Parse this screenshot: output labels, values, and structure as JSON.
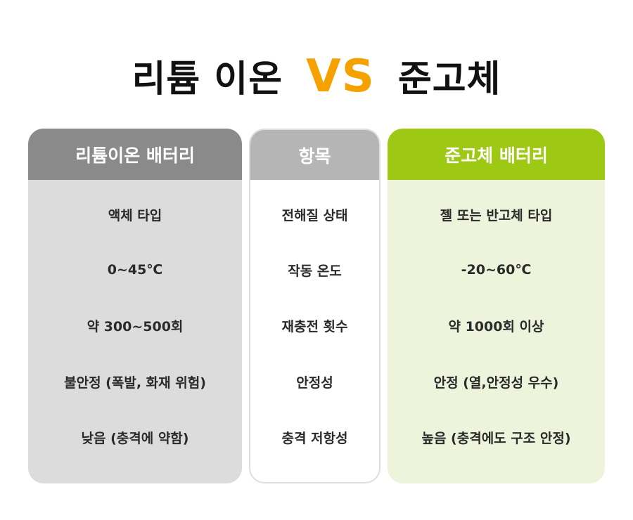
{
  "title": {
    "left": "리튬 이온",
    "vs": "VS",
    "right": "준고체",
    "vs_color": "#f5a100"
  },
  "columns": [
    {
      "header": "리튬이온 배터리",
      "header_color": "#8a8a8a",
      "body_color": "#dcdcdc",
      "rows": [
        "액체 타입",
        "0~45℃",
        "약 300~500회",
        "불안정 (폭발, 화재 위험)",
        "낮음 (충격에 약함)"
      ]
    },
    {
      "header": "항목",
      "header_color": "#b5b5b5",
      "body_color": "#ffffff",
      "rows": [
        "전해질 상태",
        "작동 온도",
        "재충전 횟수",
        "안정성",
        "충격 저항성"
      ]
    },
    {
      "header": "준고체 배터리",
      "header_color": "#9dc814",
      "body_color": "#eef4dc",
      "rows": [
        "젤 또는 반고체 타입",
        "-20~60℃",
        "약 1000회 이상",
        "안정 (열,안정성 우수)",
        "높음 (충격에도 구조 안정)"
      ]
    }
  ]
}
